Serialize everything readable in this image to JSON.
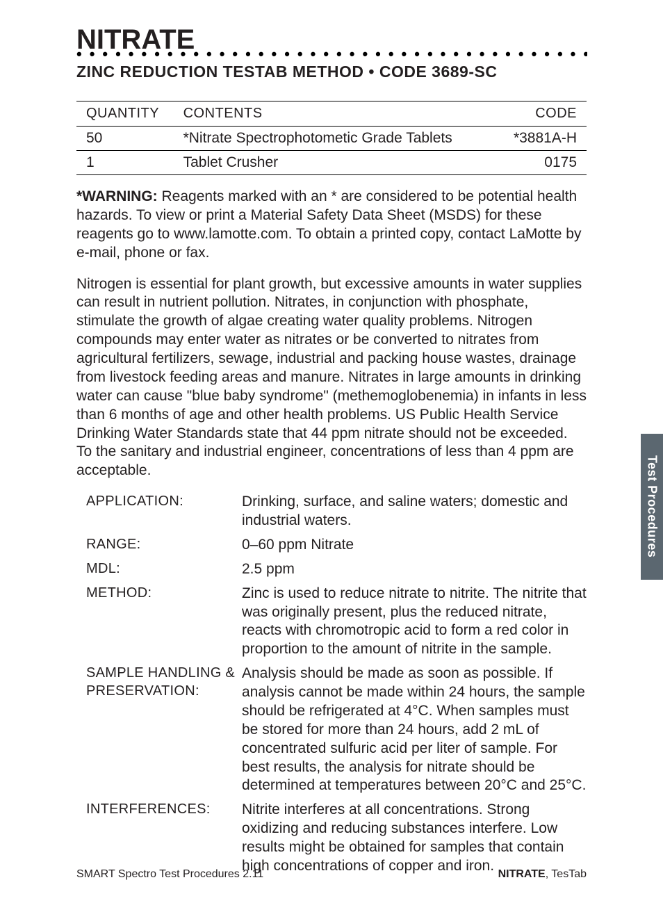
{
  "header": {
    "title": "NITRATE",
    "subtitle": "ZINC REDUCTION TESTAB METHOD • CODE 3689-SC"
  },
  "materials_table": {
    "columns": [
      "QUANTITY",
      "CONTENTS",
      "CODE"
    ],
    "rows": [
      [
        "50",
        "*Nitrate Spectrophotometic Grade Tablets",
        "*3881A-H"
      ],
      [
        "1",
        "Tablet Crusher",
        "0175"
      ]
    ]
  },
  "warning": {
    "label": "*WARNING:",
    "text": " Reagents marked with an * are considered to be potential health hazards. To view or print a Material Safety Data Sheet (MSDS) for these reagents go to www.lamotte.com. To obtain a printed copy, contact LaMotte by e-mail, phone or fax."
  },
  "intro": "Nitrogen is essential for plant growth, but excessive amounts in water supplies can result in nutrient pollution. Nitrates, in conjunction with phosphate, stimulate the growth of algae creating water quality problems. Nitrogen compounds may enter water as nitrates or be converted to nitrates from agricultural fertilizers, sewage, industrial and packing house wastes, drainage from livestock feeding areas and manure. Nitrates in large amounts in drinking water can cause \"blue baby syndrome\" (methemoglobenemia) in infants in less than 6 months of age and other health problems. US Public Health Service Drinking Water Standards state that 44 ppm nitrate should not be exceeded. To the sanitary and industrial engineer, concentrations of less than 4 ppm are acceptable.",
  "specs": [
    {
      "label": "APPLICATION:",
      "value": "Drinking, surface, and saline waters; domestic and industrial waters."
    },
    {
      "label": "RANGE:",
      "value": "0–60 ppm Nitrate"
    },
    {
      "label": "MDL:",
      "value": "2.5 ppm"
    },
    {
      "label": "METHOD:",
      "value": "Zinc is used to reduce nitrate to nitrite. The nitrite that was originally present, plus the reduced nitrate, reacts with chromotropic acid to form a red color in proportion to the amount of nitrite in the sample."
    },
    {
      "label": "SAMPLE HANDLING & PRESERVATION:",
      "value": "Analysis should be made as soon as possible. If analysis cannot be made within 24 hours, the sample should be refrigerated at 4°C. When samples must be stored for more than 24 hours, add 2 mL of concentrated sulfuric acid per liter of sample. For best results, the analysis for nitrate should be determined at temperatures between 20°C and 25°C."
    },
    {
      "label": "INTERFERENCES:",
      "value": "Nitrite interferes at all concentrations. Strong oxidizing and reducing substances interfere. Low results might be obtained for samples that contain high concentrations of copper and iron."
    }
  ],
  "side_tab": "Test Procedures",
  "footer": {
    "left": "SMART Spectro Test Procedures 2.11",
    "right_bold": "NITRATE",
    "right_rest": ", TesTab"
  }
}
